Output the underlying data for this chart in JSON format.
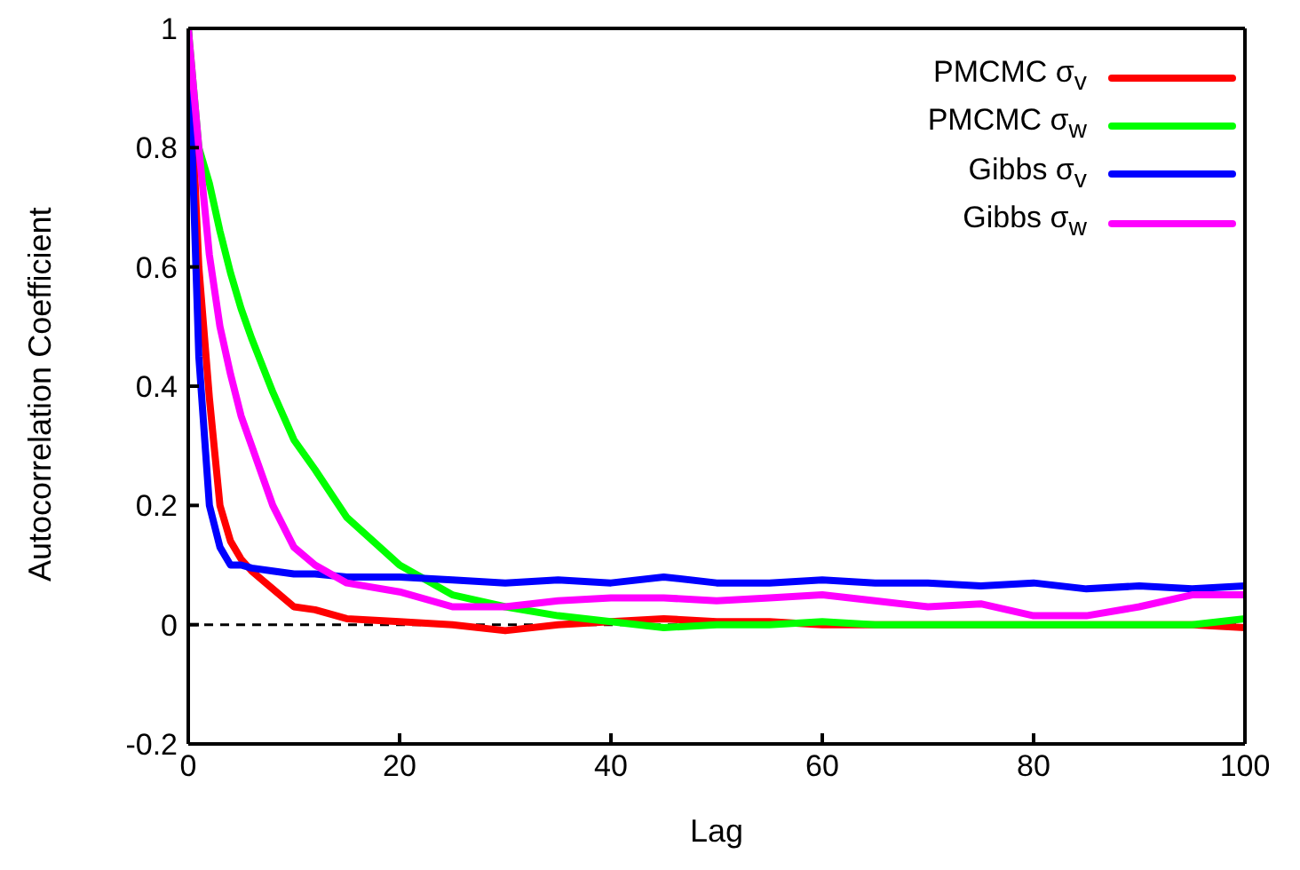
{
  "chart_data": {
    "type": "line",
    "xlabel": "Lag",
    "ylabel": "Autocorrelation Coefficient",
    "x": [
      0,
      1,
      2,
      3,
      4,
      5,
      6,
      8,
      10,
      12,
      15,
      20,
      25,
      30,
      35,
      40,
      45,
      50,
      55,
      60,
      65,
      70,
      75,
      80,
      85,
      90,
      95,
      100
    ],
    "series": [
      {
        "name": "PMCMC σ$_{v}$",
        "color": "#ff0000",
        "values": [
          1,
          0.6,
          0.38,
          0.2,
          0.14,
          0.11,
          0.09,
          0.06,
          0.03,
          0.025,
          0.01,
          0.005,
          0,
          -0.01,
          0,
          0.005,
          0.01,
          0.005,
          0.005,
          0,
          0,
          0,
          0,
          0,
          0,
          0,
          0,
          -0.005
        ]
      },
      {
        "name": "PMCMC σ$_{w}$",
        "color": "#00ff00",
        "values": [
          1,
          0.8,
          0.74,
          0.66,
          0.59,
          0.53,
          0.48,
          0.39,
          0.31,
          0.26,
          0.18,
          0.1,
          0.05,
          0.03,
          0.015,
          0.005,
          -0.005,
          0,
          0,
          0.005,
          0,
          0,
          0,
          0,
          0,
          0,
          0,
          0.01
        ]
      },
      {
        "name": "Gibbs σ$_{v}$",
        "color": "#0000ff",
        "values": [
          1,
          0.45,
          0.2,
          0.13,
          0.1,
          0.1,
          0.095,
          0.09,
          0.085,
          0.085,
          0.08,
          0.08,
          0.075,
          0.07,
          0.075,
          0.07,
          0.08,
          0.07,
          0.07,
          0.075,
          0.07,
          0.07,
          0.065,
          0.07,
          0.06,
          0.065,
          0.06,
          0.065
        ]
      },
      {
        "name": "Gibbs σ$_{w}$",
        "color": "#ff00ff",
        "values": [
          1,
          0.8,
          0.62,
          0.5,
          0.42,
          0.35,
          0.3,
          0.2,
          0.13,
          0.1,
          0.07,
          0.055,
          0.03,
          0.03,
          0.04,
          0.045,
          0.045,
          0.04,
          0.045,
          0.05,
          0.04,
          0.03,
          0.035,
          0.015,
          0.015,
          0.03,
          0.05,
          0.05
        ]
      }
    ],
    "xlim": [
      0,
      100
    ],
    "xticks": [
      0,
      20,
      40,
      60,
      80,
      100
    ],
    "ylim": [
      -0.2,
      1
    ],
    "yticks": [
      -0.2,
      0,
      0.2,
      0.4,
      0.6,
      0.8,
      1
    ],
    "ref_lines": [
      {
        "axis": "y",
        "value": 0,
        "color": "#000000",
        "line_style": "dashed"
      }
    ],
    "grid": false,
    "legend": "top right",
    "marker": "none",
    "line_style": "solid"
  }
}
